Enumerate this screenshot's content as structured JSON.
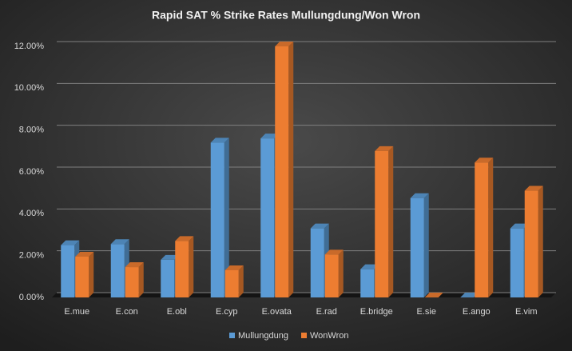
{
  "chart_data": {
    "type": "bar3d",
    "title": "Rapid SAT % Strike Rates Mullungdung/Won Wron",
    "categories": [
      "E.mue",
      "E.con",
      "E.obl",
      "E.cyp",
      "E.ovata",
      "E.rad",
      "E.bridge",
      "E.sie",
      "E.ango",
      "E.vim"
    ],
    "series": [
      {
        "name": "Mullungdung",
        "color": "#5b9bd5",
        "values": [
          2.5,
          2.55,
          1.8,
          7.4,
          7.6,
          3.3,
          1.35,
          4.75,
          0,
          3.3
        ]
      },
      {
        "name": "WonWron",
        "color": "#ed7d31",
        "values": [
          1.95,
          1.45,
          2.7,
          1.3,
          12.0,
          2.05,
          7.0,
          0,
          6.45,
          5.1
        ]
      }
    ],
    "ylim": [
      0,
      12
    ],
    "yticks": [
      {
        "value": 0,
        "label": "0.00%"
      },
      {
        "value": 2,
        "label": "2.00%"
      },
      {
        "value": 4,
        "label": "4.00%"
      },
      {
        "value": 6,
        "label": "6.00%"
      },
      {
        "value": 8,
        "label": "8.00%"
      },
      {
        "value": 10,
        "label": "10.00%"
      },
      {
        "value": 12,
        "label": "12.00%"
      }
    ],
    "grid": true,
    "legend": "bottom"
  }
}
